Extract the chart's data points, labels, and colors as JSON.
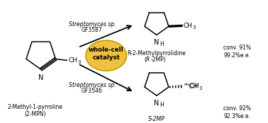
{
  "bg_color": "#ffffff",
  "ellipse_color": "#f0c040",
  "ellipse_edge": "#c8a000",
  "text": {
    "strep_top_1": "Streptomyces sp.",
    "strep_top_2": "GF3587",
    "strep_bot_1": "Streptomyces sp.",
    "strep_bot_2": "GF3546",
    "whole_cell": "whole-cell\ncatalyst",
    "sub_name1": "2-Methyl-1-pyrroline",
    "sub_name2": "(2-MPN)",
    "prod_R_1": "R-2-Methylpyrrolidine",
    "prod_R_2": "(R-2MP)",
    "prod_S": "S-2MP",
    "conv_R": "conv. 91%\n99.2%e.e.",
    "conv_S": "conv. 92%\n92.3%e.e."
  }
}
